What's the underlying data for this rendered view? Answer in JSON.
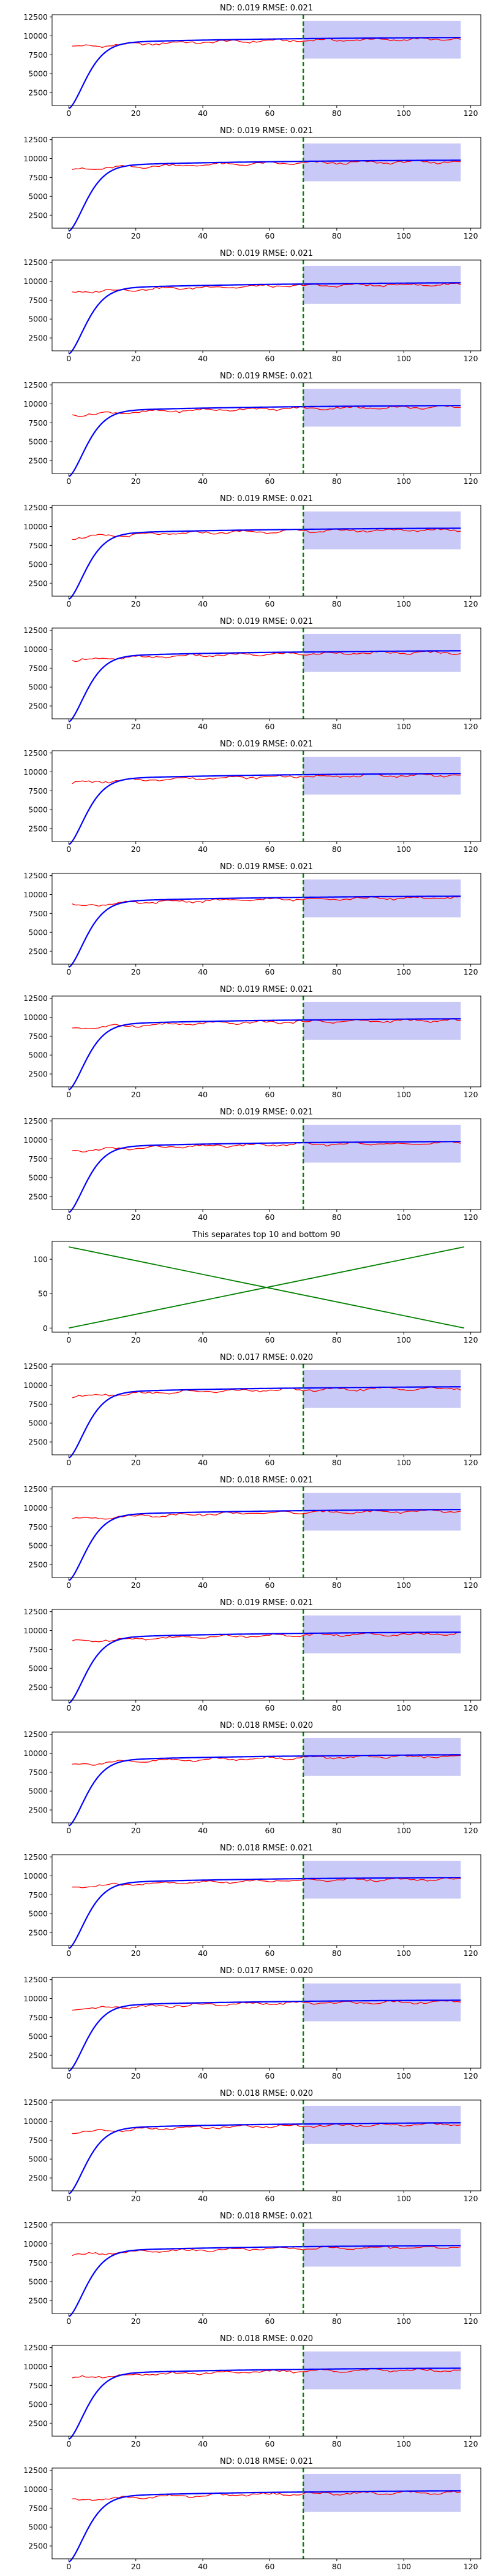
{
  "chart_data": [
    {
      "title": "ND:  0.019 RMSE:  0.021",
      "type": "line",
      "x_ticks": [
        "0",
        "20",
        "40",
        "60",
        "80",
        "100",
        "120"
      ],
      "y_ticks": [
        "2500",
        "5000",
        "7500",
        "10000",
        "12500"
      ],
      "xlim": [
        -5,
        123
      ],
      "ylim": [
        800,
        12800
      ],
      "forecast_start": 70,
      "x_end": 117,
      "band": [
        7000,
        12000
      ],
      "series": [
        {
          "name": "blue",
          "color": "#0000ff"
        },
        {
          "name": "red",
          "color": "#ff0000"
        },
        {
          "name": "forecast-start",
          "color": "#008000",
          "style": "dashed",
          "x": 70
        }
      ]
    },
    {
      "title": "ND:  0.019 RMSE:  0.021",
      "type": "line",
      "x_ticks": [
        "0",
        "20",
        "40",
        "60",
        "80",
        "100",
        "120"
      ],
      "y_ticks": [
        "2500",
        "5000",
        "7500",
        "10000",
        "12500"
      ],
      "xlim": [
        -5,
        123
      ],
      "ylim": [
        800,
        12800
      ],
      "forecast_start": 70,
      "x_end": 117,
      "band": [
        7000,
        12000
      ],
      "series": [
        {
          "name": "blue",
          "color": "#0000ff"
        },
        {
          "name": "red",
          "color": "#ff0000"
        },
        {
          "name": "forecast-start",
          "color": "#008000",
          "style": "dashed",
          "x": 70
        }
      ]
    },
    {
      "title": "ND:  0.019 RMSE:  0.021",
      "type": "line",
      "x_ticks": [
        "0",
        "20",
        "40",
        "60",
        "80",
        "100",
        "120"
      ],
      "y_ticks": [
        "2500",
        "5000",
        "7500",
        "10000",
        "12500"
      ],
      "xlim": [
        -5,
        123
      ],
      "ylim": [
        800,
        12800
      ],
      "forecast_start": 70,
      "x_end": 117,
      "band": [
        7000,
        12000
      ],
      "series": [
        {
          "name": "blue",
          "color": "#0000ff"
        },
        {
          "name": "red",
          "color": "#ff0000"
        },
        {
          "name": "forecast-start",
          "color": "#008000",
          "style": "dashed",
          "x": 70
        }
      ]
    },
    {
      "title": "ND:  0.019 RMSE:  0.021",
      "type": "line",
      "x_ticks": [
        "0",
        "20",
        "40",
        "60",
        "80",
        "100",
        "120"
      ],
      "y_ticks": [
        "2500",
        "5000",
        "7500",
        "10000",
        "12500"
      ],
      "xlim": [
        -5,
        123
      ],
      "ylim": [
        800,
        12800
      ],
      "forecast_start": 70,
      "x_end": 117,
      "band": [
        7000,
        12000
      ],
      "series": [
        {
          "name": "blue",
          "color": "#0000ff"
        },
        {
          "name": "red",
          "color": "#ff0000"
        },
        {
          "name": "forecast-start",
          "color": "#008000",
          "style": "dashed",
          "x": 70
        }
      ]
    },
    {
      "title": "ND:  0.019 RMSE:  0.021",
      "type": "line",
      "x_ticks": [
        "0",
        "20",
        "40",
        "60",
        "80",
        "100",
        "120"
      ],
      "y_ticks": [
        "2500",
        "5000",
        "7500",
        "10000",
        "12500"
      ],
      "xlim": [
        -5,
        123
      ],
      "ylim": [
        800,
        12800
      ],
      "forecast_start": 70,
      "x_end": 117,
      "band": [
        7000,
        12000
      ],
      "series": [
        {
          "name": "blue",
          "color": "#0000ff"
        },
        {
          "name": "red",
          "color": "#ff0000"
        },
        {
          "name": "forecast-start",
          "color": "#008000",
          "style": "dashed",
          "x": 70
        }
      ]
    },
    {
      "title": "ND:  0.019 RMSE:  0.021",
      "type": "line",
      "x_ticks": [
        "0",
        "20",
        "40",
        "60",
        "80",
        "100",
        "120"
      ],
      "y_ticks": [
        "2500",
        "5000",
        "7500",
        "10000",
        "12500"
      ],
      "xlim": [
        -5,
        123
      ],
      "ylim": [
        800,
        12800
      ],
      "forecast_start": 70,
      "x_end": 117,
      "band": [
        7000,
        12000
      ],
      "series": [
        {
          "name": "blue",
          "color": "#0000ff"
        },
        {
          "name": "red",
          "color": "#ff0000"
        },
        {
          "name": "forecast-start",
          "color": "#008000",
          "style": "dashed",
          "x": 70
        }
      ]
    },
    {
      "title": "ND:  0.019 RMSE:  0.021",
      "type": "line",
      "x_ticks": [
        "0",
        "20",
        "40",
        "60",
        "80",
        "100",
        "120"
      ],
      "y_ticks": [
        "2500",
        "5000",
        "7500",
        "10000",
        "12500"
      ],
      "xlim": [
        -5,
        123
      ],
      "ylim": [
        800,
        12800
      ],
      "forecast_start": 70,
      "x_end": 117,
      "band": [
        7000,
        12000
      ],
      "series": [
        {
          "name": "blue",
          "color": "#0000ff"
        },
        {
          "name": "red",
          "color": "#ff0000"
        },
        {
          "name": "forecast-start",
          "color": "#008000",
          "style": "dashed",
          "x": 70
        }
      ]
    },
    {
      "title": "ND:  0.019 RMSE:  0.021",
      "type": "line",
      "x_ticks": [
        "0",
        "20",
        "40",
        "60",
        "80",
        "100",
        "120"
      ],
      "y_ticks": [
        "2500",
        "5000",
        "7500",
        "10000",
        "12500"
      ],
      "xlim": [
        -5,
        123
      ],
      "ylim": [
        800,
        12800
      ],
      "forecast_start": 70,
      "x_end": 117,
      "band": [
        7000,
        12000
      ],
      "series": [
        {
          "name": "blue",
          "color": "#0000ff"
        },
        {
          "name": "red",
          "color": "#ff0000"
        },
        {
          "name": "forecast-start",
          "color": "#008000",
          "style": "dashed",
          "x": 70
        }
      ]
    },
    {
      "title": "ND:  0.019 RMSE:  0.021",
      "type": "line",
      "x_ticks": [
        "0",
        "20",
        "40",
        "60",
        "80",
        "100",
        "120"
      ],
      "y_ticks": [
        "2500",
        "5000",
        "7500",
        "10000",
        "12500"
      ],
      "xlim": [
        -5,
        123
      ],
      "ylim": [
        800,
        12800
      ],
      "forecast_start": 70,
      "x_end": 117,
      "band": [
        7000,
        12000
      ],
      "series": [
        {
          "name": "blue",
          "color": "#0000ff"
        },
        {
          "name": "red",
          "color": "#ff0000"
        },
        {
          "name": "forecast-start",
          "color": "#008000",
          "style": "dashed",
          "x": 70
        }
      ]
    },
    {
      "title": "ND:  0.019 RMSE:  0.021",
      "type": "line",
      "x_ticks": [
        "0",
        "20",
        "40",
        "60",
        "80",
        "100",
        "120"
      ],
      "y_ticks": [
        "2500",
        "5000",
        "7500",
        "10000",
        "12500"
      ],
      "xlim": [
        -5,
        123
      ],
      "ylim": [
        800,
        12800
      ],
      "forecast_start": 70,
      "x_end": 117,
      "band": [
        7000,
        12000
      ],
      "series": [
        {
          "name": "blue",
          "color": "#0000ff"
        },
        {
          "name": "red",
          "color": "#ff0000"
        },
        {
          "name": "forecast-start",
          "color": "#008000",
          "style": "dashed",
          "x": 70
        }
      ]
    },
    {
      "title": "This separates top 10 and bottom 90",
      "type": "line",
      "x_ticks": [
        "0",
        "20",
        "40",
        "60",
        "80",
        "100",
        "120"
      ],
      "y_ticks": [
        "0",
        "50",
        "100"
      ],
      "xlim": [
        -5,
        123
      ],
      "ylim": [
        -6,
        126
      ],
      "series": [
        {
          "name": "rising",
          "color": "#008000",
          "x": [
            0,
            118
          ],
          "y": [
            0,
            118
          ]
        },
        {
          "name": "falling",
          "color": "#008000",
          "x": [
            0,
            118
          ],
          "y": [
            118,
            0
          ]
        }
      ]
    },
    {
      "title": "ND:  0.017 RMSE:  0.020",
      "type": "line",
      "x_ticks": [
        "0",
        "20",
        "40",
        "60",
        "80",
        "100",
        "120"
      ],
      "y_ticks": [
        "2500",
        "5000",
        "7500",
        "10000",
        "12500"
      ],
      "xlim": [
        -5,
        123
      ],
      "ylim": [
        800,
        12800
      ],
      "forecast_start": 70,
      "x_end": 117,
      "band": [
        7000,
        12000
      ],
      "series": [
        {
          "name": "blue",
          "color": "#0000ff"
        },
        {
          "name": "red",
          "color": "#ff0000"
        },
        {
          "name": "forecast-start",
          "color": "#008000",
          "style": "dashed",
          "x": 70
        }
      ]
    },
    {
      "title": "ND:  0.018 RMSE:  0.021",
      "type": "line",
      "x_ticks": [
        "0",
        "20",
        "40",
        "60",
        "80",
        "100",
        "120"
      ],
      "y_ticks": [
        "2500",
        "5000",
        "7500",
        "10000",
        "12500"
      ],
      "xlim": [
        -5,
        123
      ],
      "ylim": [
        800,
        12800
      ],
      "forecast_start": 70,
      "x_end": 117,
      "band": [
        7000,
        12000
      ],
      "series": [
        {
          "name": "blue",
          "color": "#0000ff"
        },
        {
          "name": "red",
          "color": "#ff0000"
        },
        {
          "name": "forecast-start",
          "color": "#008000",
          "style": "dashed",
          "x": 70
        }
      ]
    },
    {
      "title": "ND:  0.019 RMSE:  0.021",
      "type": "line",
      "x_ticks": [
        "0",
        "20",
        "40",
        "60",
        "80",
        "100",
        "120"
      ],
      "y_ticks": [
        "2500",
        "5000",
        "7500",
        "10000",
        "12500"
      ],
      "xlim": [
        -5,
        123
      ],
      "ylim": [
        800,
        12800
      ],
      "forecast_start": 70,
      "x_end": 117,
      "band": [
        7000,
        12000
      ],
      "series": [
        {
          "name": "blue",
          "color": "#0000ff"
        },
        {
          "name": "red",
          "color": "#ff0000"
        },
        {
          "name": "forecast-start",
          "color": "#008000",
          "style": "dashed",
          "x": 70
        }
      ]
    },
    {
      "title": "ND:  0.018 RMSE:  0.020",
      "type": "line",
      "x_ticks": [
        "0",
        "20",
        "40",
        "60",
        "80",
        "100",
        "120"
      ],
      "y_ticks": [
        "2500",
        "5000",
        "7500",
        "10000",
        "12500"
      ],
      "xlim": [
        -5,
        123
      ],
      "ylim": [
        800,
        12800
      ],
      "forecast_start": 70,
      "x_end": 117,
      "band": [
        7000,
        12000
      ],
      "series": [
        {
          "name": "blue",
          "color": "#0000ff"
        },
        {
          "name": "red",
          "color": "#ff0000"
        },
        {
          "name": "forecast-start",
          "color": "#008000",
          "style": "dashed",
          "x": 70
        }
      ]
    },
    {
      "title": "ND:  0.018 RMSE:  0.021",
      "type": "line",
      "x_ticks": [
        "0",
        "20",
        "40",
        "60",
        "80",
        "100",
        "120"
      ],
      "y_ticks": [
        "2500",
        "5000",
        "7500",
        "10000",
        "12500"
      ],
      "xlim": [
        -5,
        123
      ],
      "ylim": [
        800,
        12800
      ],
      "forecast_start": 70,
      "x_end": 117,
      "band": [
        7000,
        12000
      ],
      "series": [
        {
          "name": "blue",
          "color": "#0000ff"
        },
        {
          "name": "red",
          "color": "#ff0000"
        },
        {
          "name": "forecast-start",
          "color": "#008000",
          "style": "dashed",
          "x": 70
        }
      ]
    },
    {
      "title": "ND:  0.017 RMSE:  0.020",
      "type": "line",
      "x_ticks": [
        "0",
        "20",
        "40",
        "60",
        "80",
        "100",
        "120"
      ],
      "y_ticks": [
        "2500",
        "5000",
        "7500",
        "10000",
        "12500"
      ],
      "xlim": [
        -5,
        123
      ],
      "ylim": [
        800,
        12800
      ],
      "forecast_start": 70,
      "x_end": 117,
      "band": [
        7000,
        12000
      ],
      "series": [
        {
          "name": "blue",
          "color": "#0000ff"
        },
        {
          "name": "red",
          "color": "#ff0000"
        },
        {
          "name": "forecast-start",
          "color": "#008000",
          "style": "dashed",
          "x": 70
        }
      ]
    },
    {
      "title": "ND:  0.018 RMSE:  0.020",
      "type": "line",
      "x_ticks": [
        "0",
        "20",
        "40",
        "60",
        "80",
        "100",
        "120"
      ],
      "y_ticks": [
        "2500",
        "5000",
        "7500",
        "10000",
        "12500"
      ],
      "xlim": [
        -5,
        123
      ],
      "ylim": [
        800,
        12800
      ],
      "forecast_start": 70,
      "x_end": 117,
      "band": [
        7000,
        12000
      ],
      "series": [
        {
          "name": "blue",
          "color": "#0000ff"
        },
        {
          "name": "red",
          "color": "#ff0000"
        },
        {
          "name": "forecast-start",
          "color": "#008000",
          "style": "dashed",
          "x": 70
        }
      ]
    },
    {
      "title": "ND:  0.018 RMSE:  0.021",
      "type": "line",
      "x_ticks": [
        "0",
        "20",
        "40",
        "60",
        "80",
        "100",
        "120"
      ],
      "y_ticks": [
        "2500",
        "5000",
        "7500",
        "10000",
        "12500"
      ],
      "xlim": [
        -5,
        123
      ],
      "ylim": [
        800,
        12800
      ],
      "forecast_start": 70,
      "x_end": 117,
      "band": [
        7000,
        12000
      ],
      "series": [
        {
          "name": "blue",
          "color": "#0000ff"
        },
        {
          "name": "red",
          "color": "#ff0000"
        },
        {
          "name": "forecast-start",
          "color": "#008000",
          "style": "dashed",
          "x": 70
        }
      ]
    },
    {
      "title": "ND:  0.018 RMSE:  0.020",
      "type": "line",
      "x_ticks": [
        "0",
        "20",
        "40",
        "60",
        "80",
        "100",
        "120"
      ],
      "y_ticks": [
        "2500",
        "5000",
        "7500",
        "10000",
        "12500"
      ],
      "xlim": [
        -5,
        123
      ],
      "ylim": [
        800,
        12800
      ],
      "forecast_start": 70,
      "x_end": 117,
      "band": [
        7000,
        12000
      ],
      "series": [
        {
          "name": "blue",
          "color": "#0000ff"
        },
        {
          "name": "red",
          "color": "#ff0000"
        },
        {
          "name": "forecast-start",
          "color": "#008000",
          "style": "dashed",
          "x": 70
        }
      ]
    },
    {
      "title": "ND:  0.018 RMSE:  0.021",
      "type": "line",
      "x_ticks": [
        "0",
        "20",
        "40",
        "60",
        "80",
        "100",
        "120"
      ],
      "y_ticks": [
        "2500",
        "5000",
        "7500",
        "10000",
        "12500"
      ],
      "xlim": [
        -5,
        123
      ],
      "ylim": [
        800,
        12800
      ],
      "forecast_start": 70,
      "x_end": 117,
      "band": [
        7000,
        12000
      ],
      "series": [
        {
          "name": "blue",
          "color": "#0000ff"
        },
        {
          "name": "red",
          "color": "#ff0000"
        },
        {
          "name": "forecast-start",
          "color": "#008000",
          "style": "dashed",
          "x": 70
        }
      ]
    }
  ]
}
